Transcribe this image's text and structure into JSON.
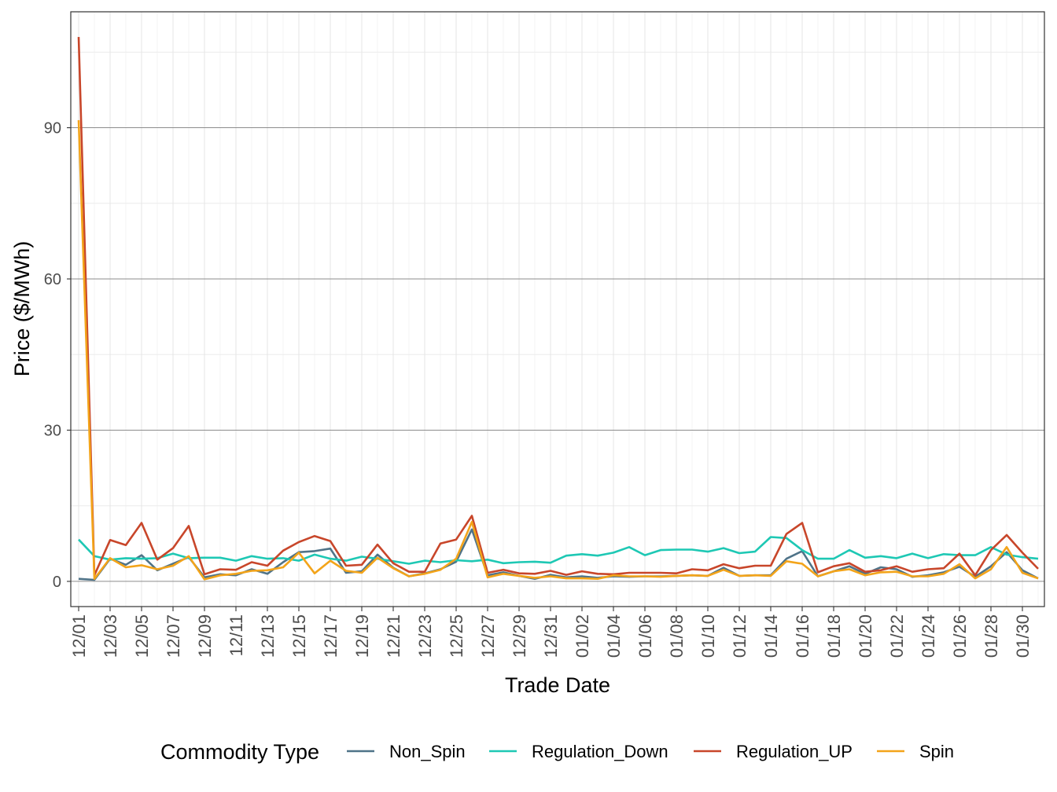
{
  "chart_data": {
    "type": "line",
    "title": "",
    "xlabel": "Trade Date",
    "ylabel": "Price ($/MWh)",
    "ylim": [
      -5,
      113
    ],
    "y_ticks": [
      0,
      30,
      60,
      90
    ],
    "y_tick_labels": [
      "0",
      "30",
      "60",
      "90"
    ],
    "x_tick_labels": [
      "12/01",
      "12/03",
      "12/05",
      "12/07",
      "12/09",
      "12/11",
      "12/13",
      "12/15",
      "12/17",
      "12/19",
      "12/21",
      "12/23",
      "12/25",
      "12/27",
      "12/29",
      "12/31",
      "01/02",
      "01/04",
      "01/06",
      "01/08",
      "01/10",
      "01/12",
      "01/14",
      "01/16",
      "01/18",
      "01/20",
      "01/22",
      "01/24",
      "01/26",
      "01/28",
      "01/30"
    ],
    "x": [
      "12/01",
      "12/02",
      "12/03",
      "12/04",
      "12/05",
      "12/06",
      "12/07",
      "12/08",
      "12/09",
      "12/10",
      "12/11",
      "12/12",
      "12/13",
      "12/14",
      "12/15",
      "12/16",
      "12/17",
      "12/18",
      "12/19",
      "12/20",
      "12/21",
      "12/22",
      "12/23",
      "12/24",
      "12/25",
      "12/26",
      "12/27",
      "12/28",
      "12/29",
      "12/30",
      "12/31",
      "01/01",
      "01/02",
      "01/03",
      "01/04",
      "01/05",
      "01/06",
      "01/07",
      "01/08",
      "01/09",
      "01/10",
      "01/11",
      "01/12",
      "01/13",
      "01/14",
      "01/15",
      "01/16",
      "01/17",
      "01/18",
      "01/19",
      "01/20",
      "01/21",
      "01/22",
      "01/23",
      "01/24",
      "01/25",
      "01/26",
      "01/27",
      "01/28",
      "01/29",
      "01/30",
      "01/31"
    ],
    "grid": true,
    "legend": {
      "title": "Commodity Type",
      "position": "bottom"
    },
    "series": [
      {
        "name": "Non_Spin",
        "color": "#4f7388",
        "values": [
          0.5,
          0.3,
          4.5,
          3.3,
          5.2,
          2.2,
          3.5,
          4.8,
          0.8,
          1.4,
          1.2,
          2.4,
          1.5,
          3.8,
          5.8,
          6.0,
          6.5,
          1.7,
          2.0,
          5.3,
          2.7,
          1.0,
          1.6,
          2.4,
          3.9,
          10.3,
          1.2,
          1.8,
          1.1,
          0.5,
          1.3,
          0.8,
          1.0,
          0.7,
          1.0,
          0.9,
          1.0,
          1.0,
          1.1,
          1.2,
          1.1,
          2.7,
          1.1,
          1.2,
          1.2,
          4.5,
          6.0,
          1.0,
          2.0,
          3.0,
          1.5,
          2.8,
          2.4,
          0.9,
          1.2,
          1.8,
          2.9,
          0.9,
          3.0,
          5.8,
          2.2,
          0.6
        ]
      },
      {
        "name": "Regulation_Down",
        "color": "#1ec8b4",
        "values": [
          8.3,
          5.0,
          4.3,
          4.6,
          4.5,
          4.6,
          5.5,
          4.6,
          4.7,
          4.7,
          4.1,
          5.0,
          4.5,
          4.6,
          4.1,
          5.3,
          4.5,
          4.1,
          4.9,
          4.5,
          4.0,
          3.5,
          4.1,
          3.8,
          4.2,
          4.0,
          4.3,
          3.6,
          3.8,
          3.9,
          3.7,
          5.1,
          5.4,
          5.1,
          5.7,
          6.8,
          5.2,
          6.2,
          6.3,
          6.3,
          5.9,
          6.6,
          5.6,
          5.9,
          8.8,
          8.6,
          6.2,
          4.5,
          4.5,
          6.2,
          4.7,
          5.0,
          4.6,
          5.5,
          4.6,
          5.4,
          5.2,
          5.2,
          6.8,
          5.3,
          4.8,
          4.5
        ]
      },
      {
        "name": "Regulation_UP",
        "color": "#c8462a",
        "values": [
          108,
          1.2,
          8.2,
          7.2,
          11.6,
          4.3,
          6.6,
          11.0,
          1.4,
          2.4,
          2.3,
          3.8,
          3.1,
          6.1,
          7.8,
          9.0,
          8.0,
          3.1,
          3.3,
          7.3,
          3.6,
          1.9,
          1.9,
          7.5,
          8.3,
          13.0,
          1.7,
          2.3,
          1.6,
          1.5,
          2.1,
          1.3,
          2.0,
          1.5,
          1.4,
          1.7,
          1.7,
          1.7,
          1.6,
          2.4,
          2.2,
          3.4,
          2.6,
          3.1,
          3.1,
          9.4,
          11.6,
          1.8,
          3.0,
          3.6,
          1.9,
          2.2,
          3.0,
          1.9,
          2.4,
          2.6,
          5.5,
          1.2,
          6.2,
          9.2,
          5.7,
          2.5
        ]
      },
      {
        "name": "Spin",
        "color": "#f3a41a",
        "values": [
          91.5,
          0.5,
          4.6,
          2.8,
          3.2,
          2.4,
          3.1,
          5.0,
          0.4,
          1.2,
          1.5,
          2.1,
          2.2,
          2.8,
          5.7,
          1.6,
          4.1,
          2.1,
          1.7,
          4.7,
          2.6,
          1.0,
          1.5,
          2.3,
          4.5,
          11.8,
          0.8,
          1.5,
          1.1,
          0.7,
          1.0,
          0.6,
          0.6,
          0.5,
          1.2,
          1.0,
          1.0,
          0.9,
          1.1,
          1.2,
          1.1,
          2.3,
          1.1,
          1.2,
          1.1,
          4.0,
          3.5,
          1.0,
          2.0,
          2.4,
          1.2,
          1.8,
          1.9,
          1.0,
          1.0,
          1.5,
          3.4,
          0.6,
          2.4,
          6.8,
          1.7,
          0.6
        ]
      }
    ]
  }
}
